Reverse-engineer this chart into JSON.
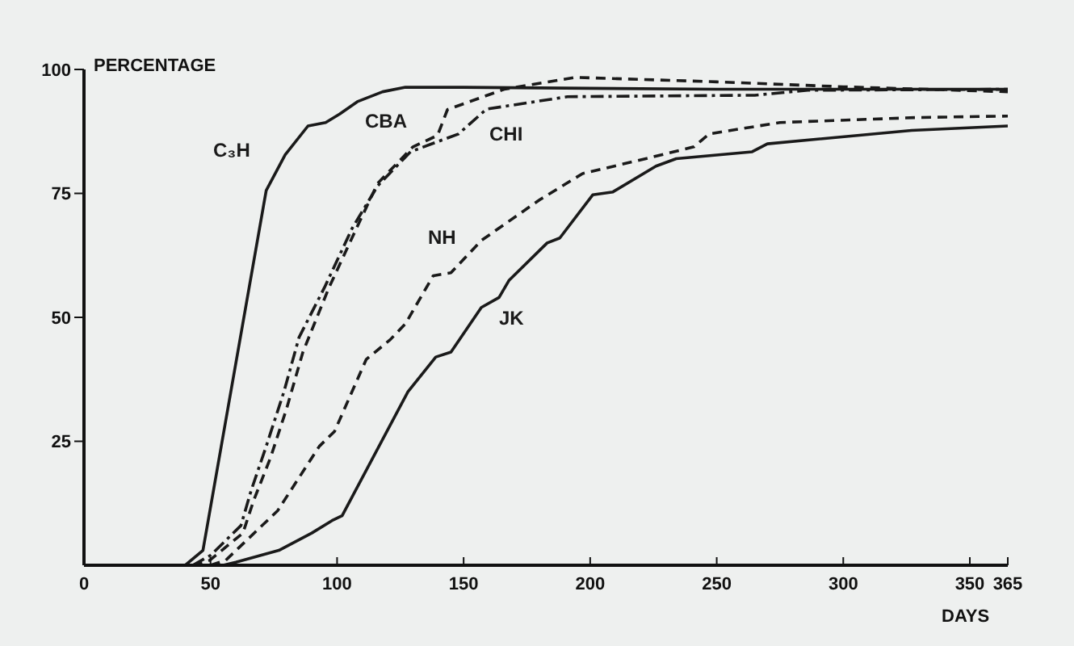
{
  "chart_data": {
    "type": "line",
    "xlabel": "DAYS",
    "ylabel": "PERCENTAGE",
    "xlim": [
      0,
      365
    ],
    "xticks": [
      0,
      50,
      100,
      150,
      200,
      250,
      300,
      350,
      365
    ],
    "ylim": [
      0,
      100
    ],
    "yticks": [
      25,
      50,
      75,
      100
    ],
    "grid": false,
    "legend": false,
    "marker": "none",
    "series": [
      {
        "name": "C₃H",
        "color": "#1a1a1a",
        "line_style": "solid",
        "x": [
          0,
          40,
          47,
          72,
          79.5,
          88.5,
          95.5,
          101,
          108,
          118,
          127,
          150,
          200,
          250,
          300,
          365
        ],
        "values": [
          0,
          0,
          3,
          75.6,
          82.8,
          88.6,
          89.3,
          91,
          93.5,
          95.5,
          96.4,
          96.4,
          96.2,
          96,
          96,
          96
        ]
      },
      {
        "name": "CBA",
        "color": "#1a1a1a",
        "line_style": "dashed",
        "x": [
          43,
          49.7,
          62.8,
          67,
          73.7,
          80,
          86.5,
          96.8,
          107.7,
          116,
          130,
          139.7,
          143.6,
          166,
          194,
          250,
          300,
          365
        ],
        "values": [
          0,
          1,
          6.5,
          13,
          21.7,
          31.5,
          43,
          56,
          68,
          77,
          84.4,
          86.7,
          91.9,
          96,
          98.4,
          97.5,
          96.5,
          95.5
        ]
      },
      {
        "name": "CHI",
        "color": "#1a1a1a",
        "line_style": "dashdot",
        "x": [
          43,
          50,
          62,
          66,
          72,
          79,
          85,
          95,
          106,
          116,
          129,
          148,
          159,
          191,
          265,
          286,
          365
        ],
        "values": [
          0,
          2,
          8,
          15,
          24,
          35,
          46,
          56,
          68,
          76.5,
          83.4,
          87,
          92,
          94.5,
          94.8,
          95.8,
          96
        ]
      },
      {
        "name": "NH",
        "color": "#1a1a1a",
        "line_style": "dashed",
        "x": [
          50,
          56,
          76.5,
          93,
          99,
          111.5,
          121,
          127,
          138,
          145,
          157,
          180,
          197,
          222,
          241,
          247,
          275,
          329,
          365
        ],
        "values": [
          0,
          1,
          11,
          24,
          27,
          41.5,
          45.5,
          48.7,
          58.4,
          59,
          65.5,
          73.7,
          79,
          82,
          84.4,
          87,
          89.3,
          90.3,
          90.6
        ]
      },
      {
        "name": "JK",
        "color": "#1a1a1a",
        "line_style": "solid",
        "x": [
          55,
          60,
          77,
          90,
          98,
          102,
          128,
          139,
          145,
          157,
          164,
          168,
          183,
          188,
          201,
          209,
          226,
          234,
          264,
          270,
          327,
          365
        ],
        "values": [
          0,
          0.6,
          3,
          6.5,
          9,
          10,
          35,
          42,
          43,
          52,
          54,
          57.5,
          65,
          66,
          74.7,
          75.3,
          80.5,
          82,
          83.4,
          85,
          87.7,
          88.6
        ]
      }
    ]
  }
}
